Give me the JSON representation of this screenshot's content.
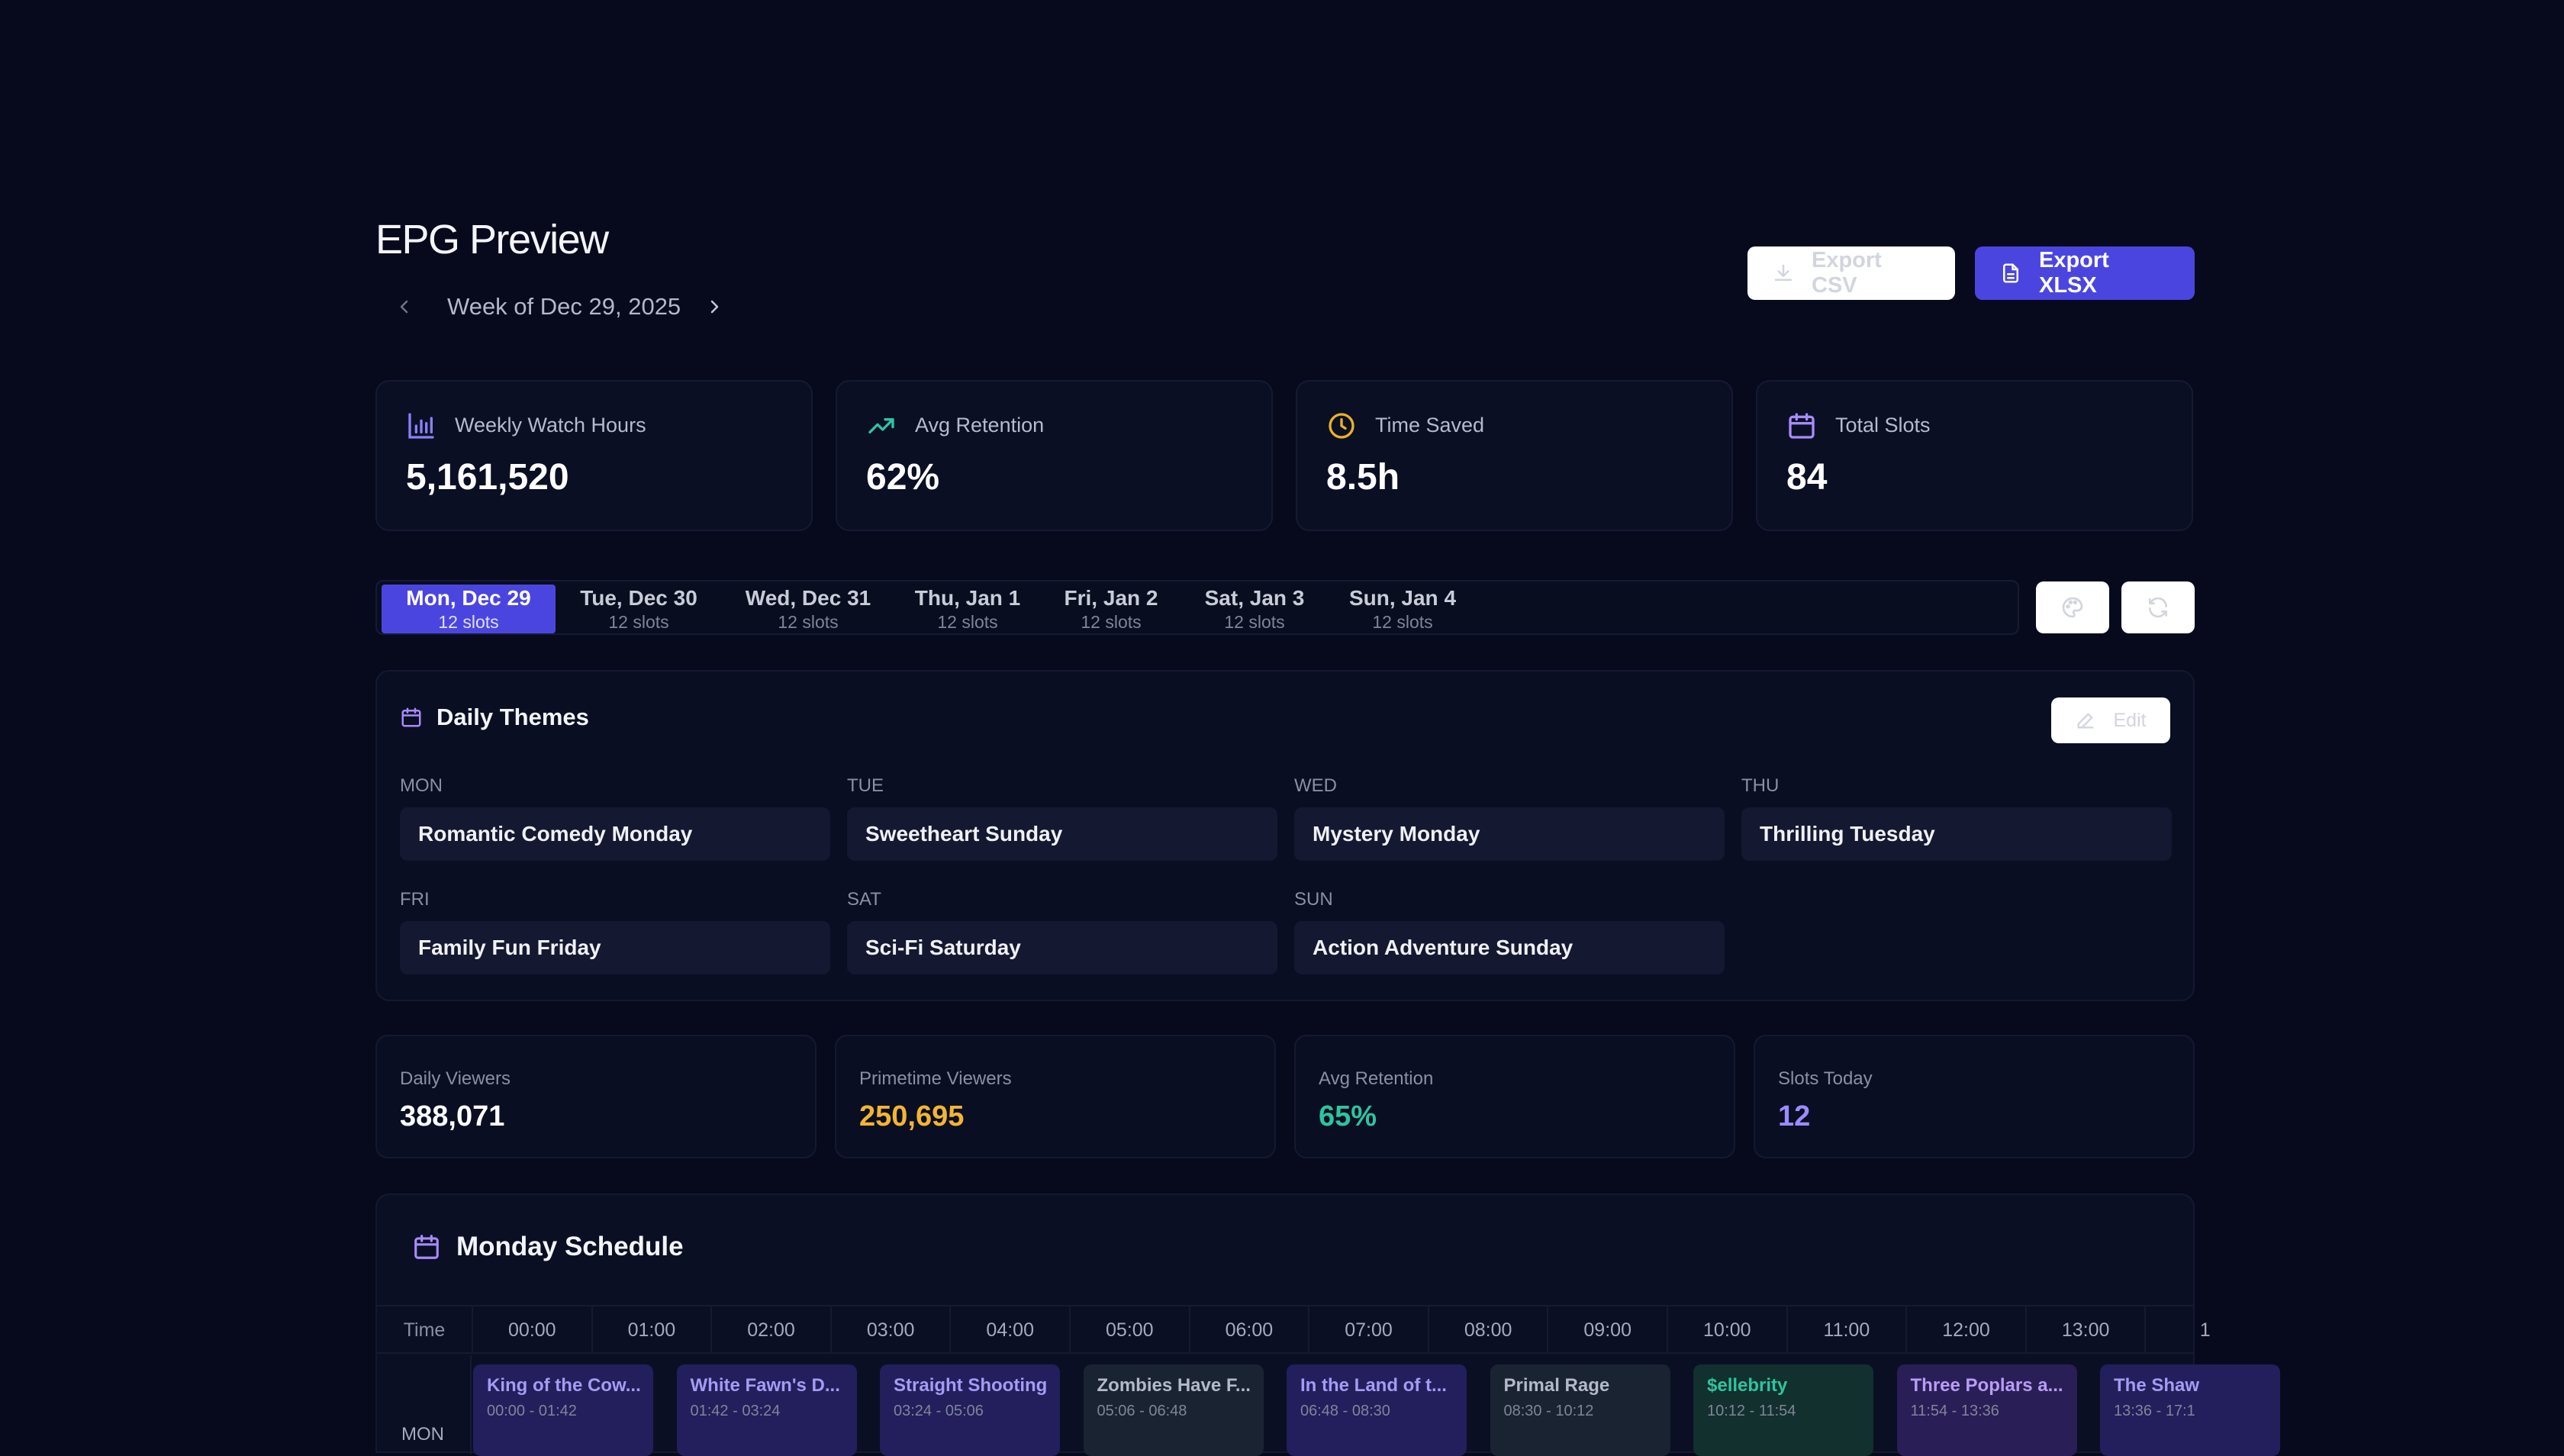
{
  "header": {
    "title": "EPG Preview",
    "week_label": "Week of Dec 29, 2025",
    "export_csv_label": "Export CSV",
    "export_xlsx_label": "Export XLSX"
  },
  "stats": [
    {
      "label": "Weekly Watch Hours",
      "value": "5,161,520",
      "icon": "bar-chart-icon",
      "icon_color": "#8b80f9"
    },
    {
      "label": "Avg Retention",
      "value": "62%",
      "icon": "trending-up-icon",
      "icon_color": "#2ec4a0"
    },
    {
      "label": "Time Saved",
      "value": "8.5h",
      "icon": "clock-icon",
      "icon_color": "#e8b32a"
    },
    {
      "label": "Total Slots",
      "value": "84",
      "icon": "calendar-icon",
      "icon_color": "#a78bfa"
    }
  ],
  "day_tabs": [
    {
      "name": "Mon, Dec 29",
      "sub": "12 slots",
      "active": true
    },
    {
      "name": "Tue, Dec 30",
      "sub": "12 slots"
    },
    {
      "name": "Wed, Dec 31",
      "sub": "12 slots"
    },
    {
      "name": "Thu, Jan 1",
      "sub": "12 slots"
    },
    {
      "name": "Fri, Jan 2",
      "sub": "12 slots"
    },
    {
      "name": "Sat, Jan 3",
      "sub": "12 slots"
    },
    {
      "name": "Sun, Jan 4",
      "sub": "12 slots"
    }
  ],
  "themes": {
    "title": "Daily Themes",
    "edit_label": "Edit",
    "items": [
      {
        "day": "MON",
        "theme": "Romantic Comedy Monday"
      },
      {
        "day": "TUE",
        "theme": "Sweetheart Sunday"
      },
      {
        "day": "WED",
        "theme": "Mystery Monday"
      },
      {
        "day": "THU",
        "theme": "Thrilling Tuesday"
      },
      {
        "day": "FRI",
        "theme": "Family Fun Friday"
      },
      {
        "day": "SAT",
        "theme": "Sci-Fi Saturday"
      },
      {
        "day": "SUN",
        "theme": "Action Adventure Sunday"
      }
    ]
  },
  "metrics": [
    {
      "label": "Daily Viewers",
      "value": "388,071",
      "color": "#ffffff"
    },
    {
      "label": "Primetime Viewers",
      "value": "250,695",
      "color": "#f2b533"
    },
    {
      "label": "Avg Retention",
      "value": "65%",
      "color": "#2ec4a0"
    },
    {
      "label": "Slots Today",
      "value": "12",
      "color": "#9b8cff"
    }
  ],
  "schedule": {
    "title": "Monday Schedule",
    "time_header": "Time",
    "row_label": "MON",
    "hours": [
      "00:00",
      "01:00",
      "02:00",
      "03:00",
      "04:00",
      "05:00",
      "06:00",
      "07:00",
      "08:00",
      "09:00",
      "10:00",
      "11:00",
      "12:00",
      "13:00",
      "1"
    ],
    "slots": [
      {
        "title": "King of the Cow...",
        "time": "00:00 - 01:42",
        "bg": "#221f5c",
        "fg": "#a49cf2"
      },
      {
        "title": "White Fawn's D...",
        "time": "01:42 - 03:24",
        "bg": "#221f5c",
        "fg": "#a49cf2"
      },
      {
        "title": "Straight Shooting",
        "time": "03:24 - 05:06",
        "bg": "#221f5c",
        "fg": "#a49cf2"
      },
      {
        "title": "Zombies Have F...",
        "time": "05:06 - 06:48",
        "bg": "#1a2332",
        "fg": "#b3b9c8"
      },
      {
        "title": "In the Land of t...",
        "time": "06:48 - 08:30",
        "bg": "#221f5c",
        "fg": "#a49cf2"
      },
      {
        "title": "Primal Rage",
        "time": "08:30 - 10:12",
        "bg": "#1a2332",
        "fg": "#b3b9c8"
      },
      {
        "title": "$ellebrity",
        "time": "10:12 - 11:54",
        "bg": "#11302e",
        "fg": "#2ec4a0"
      },
      {
        "title": "Three Poplars a...",
        "time": "11:54 - 13:36",
        "bg": "#2a1e56",
        "fg": "#b89cf5"
      },
      {
        "title": "The Shaw",
        "time": "13:36 - 17:1",
        "bg": "#221f5c",
        "fg": "#a49cf2"
      }
    ]
  }
}
